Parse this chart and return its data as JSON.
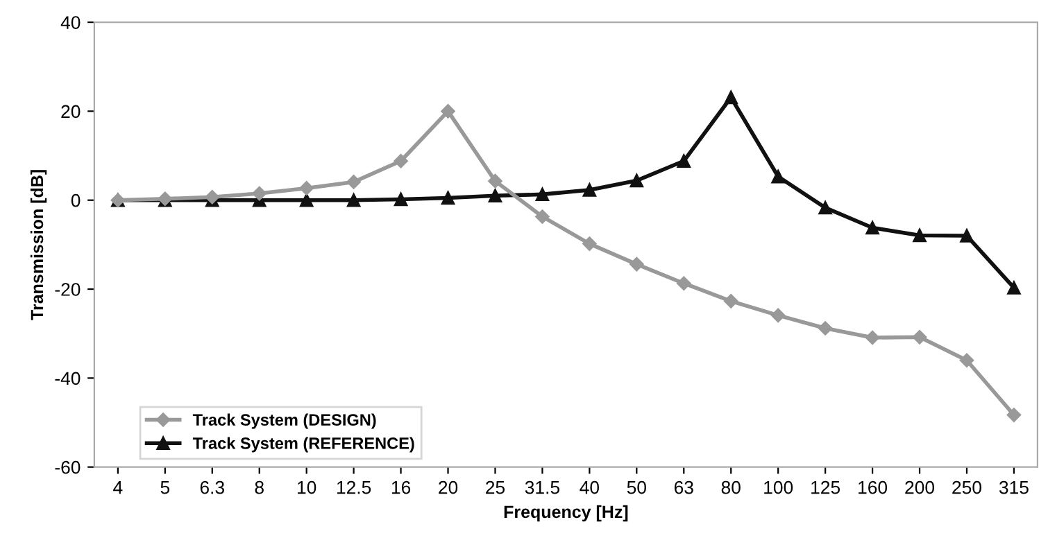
{
  "chart_data": {
    "type": "line",
    "xlabel": "Frequency [Hz]",
    "ylabel": "Transmission [dB]",
    "categories": [
      "4",
      "5",
      "6.3",
      "8",
      "10",
      "12.5",
      "16",
      "20",
      "25",
      "31.5",
      "40",
      "50",
      "63",
      "80",
      "100",
      "125",
      "160",
      "200",
      "250",
      "315"
    ],
    "series": [
      {
        "name": "Track System (DESIGN)",
        "color": "#999999",
        "marker": "diamond",
        "values": [
          0,
          0.3,
          0.7,
          1.5,
          2.7,
          4.1,
          8.8,
          20,
          4.3,
          -3.7,
          -9.8,
          -14.4,
          -18.7,
          -22.7,
          -25.9,
          -28.8,
          -30.9,
          -30.8,
          -36,
          -48.3
        ]
      },
      {
        "name": "Track System (REFERENCE)",
        "color": "#111111",
        "marker": "triangle",
        "values": [
          0,
          0,
          0,
          0,
          0,
          0,
          0.2,
          0.5,
          1,
          1.3,
          2.3,
          4.4,
          8.8,
          23.1,
          5.3,
          -1.7,
          -6.2,
          -7.9,
          -8,
          -19.7
        ]
      }
    ],
    "ylim": [
      -60,
      40
    ],
    "yticks": [
      -60,
      -40,
      -20,
      0,
      20,
      40
    ],
    "legend": "bottom left"
  }
}
